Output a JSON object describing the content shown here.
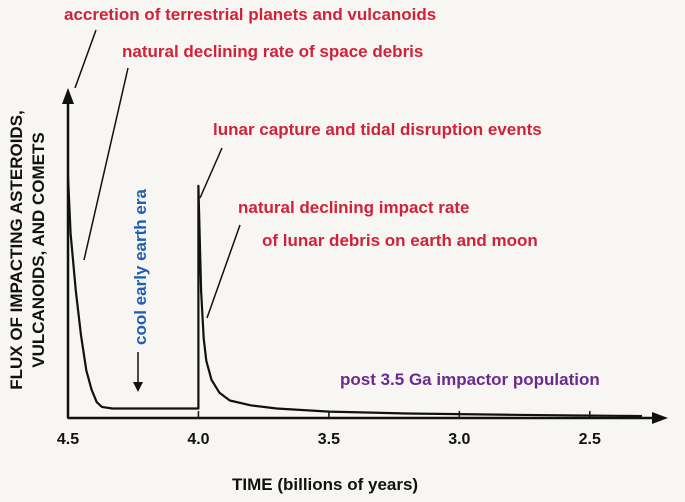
{
  "chart_data": {
    "type": "line",
    "xlabel": "TIME (billions of years)",
    "ylabel_lines": [
      "FLUX OF IMPACTING ASTEROIDS,",
      "VULCANOIDS, AND COMETS"
    ],
    "x_reversed": true,
    "xlim": [
      4.5,
      2.25
    ],
    "x_ticks": [
      4.5,
      4.0,
      3.5,
      3.0,
      2.5
    ],
    "x_tick_labels": [
      "4.5",
      "4.0",
      "3.5",
      "3.0",
      "2.5"
    ],
    "ylim": [
      0,
      100
    ],
    "grid": false,
    "series": [
      {
        "color": "#111111",
        "x": [
          4.5,
          4.49,
          4.47,
          4.45,
          4.43,
          4.41,
          4.39,
          4.37,
          4.33,
          4.25,
          4.15,
          4.05,
          4.0,
          4.0,
          3.99,
          3.98,
          3.97,
          3.95,
          3.92,
          3.88,
          3.8,
          3.7,
          3.5,
          3.2,
          2.8,
          2.4,
          2.3
        ],
        "y": [
          76,
          58,
          40,
          26,
          15,
          9,
          5,
          3.5,
          3,
          3,
          3,
          3,
          3,
          73,
          40,
          25,
          18,
          12,
          8,
          5.5,
          4,
          3,
          2,
          1.4,
          1,
          0.7,
          0.6
        ]
      }
    ]
  },
  "annotations": {
    "accretion": "accretion of terrestrial planets and vulcanoids",
    "space_debris": "natural declining rate of space debris",
    "lunar_capture": "lunar capture and tidal disruption events",
    "impact_rate_1": "natural declining impact rate",
    "impact_rate_2": "of lunar debris on earth and moon",
    "cool_era": "cool early earth era",
    "post_population": "post 3.5 Ga impactor population"
  },
  "colors": {
    "red_text": "#d0223a",
    "blue_text": "#1f5fb0",
    "purple_text": "#6a2a8e",
    "axis": "#111111"
  }
}
